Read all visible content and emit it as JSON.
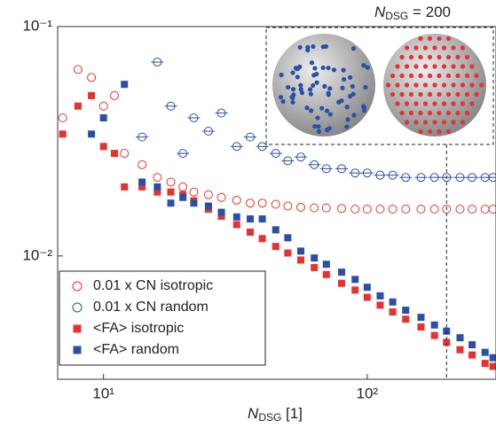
{
  "chart_data": {
    "type": "scatter",
    "xlabel": {
      "main": "N",
      "sub": "DSG",
      "suffix": " [1]"
    },
    "annotation": {
      "main": "N",
      "sub": "DSG",
      "suffix": " = 200"
    },
    "vline": 200,
    "xscale": "log",
    "yscale": "log",
    "xlim": [
      6.7,
      308
    ],
    "ylim": [
      0.0029,
      0.1
    ],
    "xticks": [
      {
        "value": 10,
        "label": "10¹"
      },
      {
        "value": 100,
        "label": "10²"
      }
    ],
    "yticks": [
      {
        "value": 0.01,
        "label": "10⁻²"
      },
      {
        "value": 0.1,
        "label": "10⁻¹"
      }
    ],
    "legend_position": "lower left",
    "x": [
      6,
      7,
      8,
      9,
      10,
      11,
      12,
      14,
      16,
      18,
      20,
      22,
      25,
      28,
      32,
      36,
      40,
      45,
      50,
      56,
      63,
      70,
      80,
      90,
      100,
      112,
      125,
      140,
      160,
      180,
      200,
      225,
      250,
      280,
      300
    ],
    "series": [
      {
        "name": "0.01 x CN isotropic",
        "color": "#e8312f",
        "marker": "circle-open",
        "values": [
          null,
          0.04,
          0.065,
          0.06,
          0.045,
          0.05,
          0.028,
          0.025,
          0.022,
          0.021,
          0.02,
          0.019,
          0.0185,
          0.018,
          0.0175,
          0.017,
          0.017,
          0.0168,
          0.0165,
          0.0163,
          0.0162,
          0.0162,
          0.0161,
          0.016,
          0.016,
          0.016,
          0.016,
          0.016,
          0.016,
          0.016,
          0.016,
          0.016,
          0.016,
          0.016,
          0.016
        ]
      },
      {
        "name": "0.01 x CN random",
        "color": "#2a4fa8",
        "marker": "circle-open",
        "values": [
          null,
          null,
          null,
          null,
          null,
          null,
          null,
          0.033,
          0.07,
          0.045,
          0.028,
          0.04,
          0.035,
          0.042,
          0.03,
          0.033,
          0.03,
          0.028,
          0.026,
          0.027,
          0.025,
          0.024,
          0.024,
          0.023,
          0.023,
          0.0225,
          0.0225,
          0.022,
          0.022,
          0.022,
          0.022,
          0.022,
          0.022,
          0.022,
          0.022
        ]
      },
      {
        "name": "<FA> isotropic",
        "color": "#e8312f",
        "marker": "square",
        "values": [
          0.085,
          0.034,
          0.045,
          0.05,
          0.03,
          0.028,
          0.02,
          0.02,
          0.019,
          0.019,
          0.0185,
          0.0174,
          0.016,
          0.0149,
          0.0137,
          0.0127,
          0.0119,
          0.011,
          0.0103,
          0.0096,
          0.0089,
          0.0083,
          0.0076,
          0.0071,
          0.0066,
          0.0061,
          0.0057,
          0.0053,
          0.0049,
          0.0045,
          0.0042,
          0.0039,
          0.0037,
          0.0034,
          0.0033
        ]
      },
      {
        "name": "<FA> random",
        "color": "#2a4fa8",
        "marker": "square",
        "values": [
          null,
          null,
          null,
          0.034,
          0.04,
          null,
          0.056,
          0.021,
          0.02,
          0.017,
          0.018,
          0.017,
          0.0165,
          0.0155,
          0.0148,
          0.0145,
          0.0145,
          0.013,
          0.012,
          0.0105,
          0.0098,
          0.0092,
          0.0085,
          0.0079,
          0.0073,
          0.0067,
          0.0063,
          0.0058,
          0.0054,
          0.005,
          0.0047,
          0.0044,
          0.0041,
          0.0038,
          0.0036
        ]
      }
    ]
  }
}
